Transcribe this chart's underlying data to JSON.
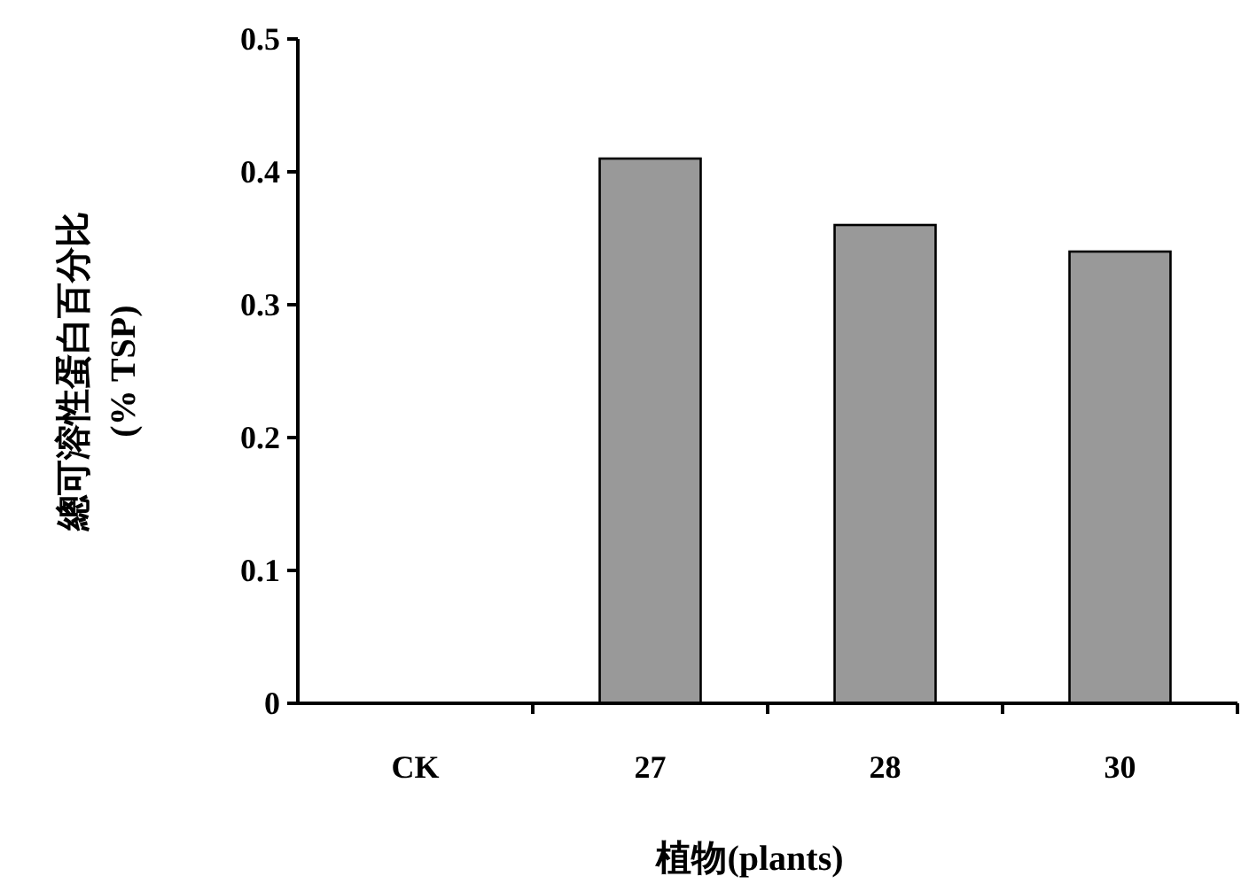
{
  "chart_data": {
    "type": "bar",
    "xlabel": "植物(plants)",
    "ylabel": "總可溶性蛋白百分比\n(% TSP)",
    "categories": [
      "CK",
      "27",
      "28",
      "30"
    ],
    "series": [
      {
        "color": "#999999",
        "values": [
          0,
          0.41,
          0.36,
          0.34
        ]
      }
    ],
    "ylim": [
      0,
      0.5
    ],
    "yticks": [
      0,
      0.1,
      0.2,
      0.3,
      0.4,
      0.5
    ]
  }
}
